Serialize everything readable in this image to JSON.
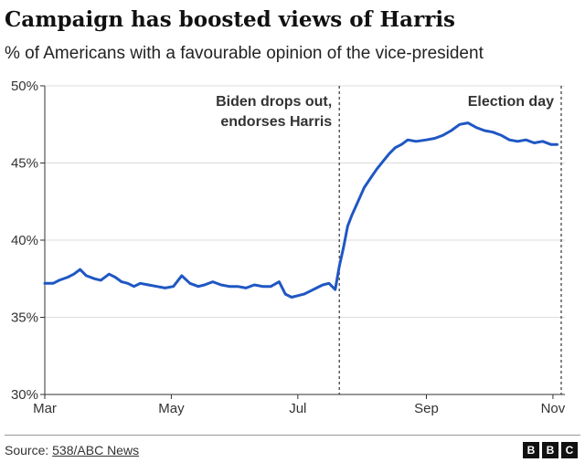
{
  "header": {
    "title": "Campaign has boosted views of Harris",
    "subtitle": "% of Americans with a favourable opinion of the vice-president"
  },
  "footer": {
    "source_prefix": "Source: ",
    "source_link": "538/ABC News",
    "logo_letters": [
      "B",
      "B",
      "C"
    ]
  },
  "chart_data": {
    "type": "line",
    "title": "Campaign has boosted views of Harris",
    "subtitle": "% of Americans with a favourable opinion of the vice-president",
    "xlabel": "",
    "ylabel": "",
    "ylim": [
      30,
      50
    ],
    "xlim": [
      "2024-03-01",
      "2024-11-05"
    ],
    "y_ticks": [
      30,
      35,
      40,
      45,
      50
    ],
    "y_tick_labels": [
      "30%",
      "35%",
      "40%",
      "45%",
      "50%"
    ],
    "x_ticks": [
      "2024-03-01",
      "2024-05-01",
      "2024-07-01",
      "2024-09-01",
      "2024-11-01"
    ],
    "x_tick_labels": [
      "Mar",
      "May",
      "Jul",
      "Sep",
      "Nov"
    ],
    "grid": true,
    "line_color": "#1f57c3",
    "annotations": [
      {
        "date": "2024-07-21",
        "lines": [
          "Biden drops out,",
          "endorses Harris"
        ]
      },
      {
        "date": "2024-11-05",
        "lines": [
          "Election day"
        ]
      }
    ],
    "series": [
      {
        "name": "",
        "x": [
          "2024-03-01",
          "2024-03-05",
          "2024-03-08",
          "2024-03-12",
          "2024-03-15",
          "2024-03-18",
          "2024-03-21",
          "2024-03-25",
          "2024-03-28",
          "2024-04-01",
          "2024-04-04",
          "2024-04-07",
          "2024-04-10",
          "2024-04-13",
          "2024-04-16",
          "2024-04-20",
          "2024-04-24",
          "2024-04-28",
          "2024-05-02",
          "2024-05-06",
          "2024-05-10",
          "2024-05-14",
          "2024-05-17",
          "2024-05-21",
          "2024-05-25",
          "2024-05-29",
          "2024-06-02",
          "2024-06-06",
          "2024-06-10",
          "2024-06-14",
          "2024-06-18",
          "2024-06-22",
          "2024-06-25",
          "2024-06-28",
          "2024-07-01",
          "2024-07-04",
          "2024-07-07",
          "2024-07-10",
          "2024-07-13",
          "2024-07-16",
          "2024-07-19",
          "2024-07-21",
          "2024-07-23",
          "2024-07-25",
          "2024-07-27",
          "2024-07-29",
          "2024-07-31",
          "2024-08-02",
          "2024-08-05",
          "2024-08-08",
          "2024-08-11",
          "2024-08-14",
          "2024-08-17",
          "2024-08-20",
          "2024-08-23",
          "2024-08-27",
          "2024-09-01",
          "2024-09-05",
          "2024-09-09",
          "2024-09-13",
          "2024-09-17",
          "2024-09-21",
          "2024-09-25",
          "2024-09-29",
          "2024-10-03",
          "2024-10-07",
          "2024-10-11",
          "2024-10-15",
          "2024-10-19",
          "2024-10-23",
          "2024-10-27",
          "2024-10-31",
          "2024-11-03"
        ],
        "y": [
          37.2,
          37.2,
          37.4,
          37.6,
          37.8,
          38.1,
          37.7,
          37.5,
          37.4,
          37.8,
          37.6,
          37.3,
          37.2,
          37.0,
          37.2,
          37.1,
          37.0,
          36.9,
          37.0,
          37.7,
          37.2,
          37.0,
          37.1,
          37.3,
          37.1,
          37.0,
          37.0,
          36.9,
          37.1,
          37.0,
          37.0,
          37.3,
          36.5,
          36.3,
          36.4,
          36.5,
          36.7,
          36.9,
          37.1,
          37.2,
          36.8,
          38.3,
          39.5,
          40.9,
          41.6,
          42.2,
          42.8,
          43.4,
          44.0,
          44.6,
          45.1,
          45.6,
          46.0,
          46.2,
          46.5,
          46.4,
          46.5,
          46.6,
          46.8,
          47.1,
          47.5,
          47.6,
          47.3,
          47.1,
          47.0,
          46.8,
          46.5,
          46.4,
          46.5,
          46.3,
          46.4,
          46.2,
          46.2
        ]
      }
    ]
  }
}
